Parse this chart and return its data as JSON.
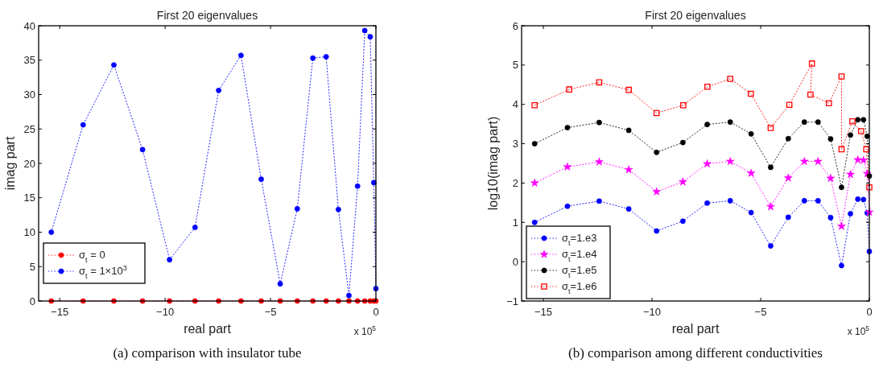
{
  "chart_data": [
    {
      "type": "line",
      "title": "First 20 eigenvalues",
      "xlabel": "real part",
      "ylabel": "imag part",
      "x": [
        -15.4,
        -13.89,
        -12.43,
        -11.07,
        -9.79,
        -8.58,
        -7.46,
        -6.4,
        -5.44,
        -4.54,
        -3.73,
        -2.99,
        -2.36,
        -1.78,
        -1.28,
        -0.87,
        -0.53,
        -0.27,
        -0.1,
        0
      ],
      "series": [
        {
          "name": "σ$_{t}$ = 0",
          "color": "#ff0000",
          "marker": "circle",
          "values": [
            0,
            0,
            0,
            0,
            0,
            0,
            0,
            0,
            0,
            0,
            0,
            0,
            0,
            0,
            0,
            0,
            0,
            0,
            0,
            0
          ]
        },
        {
          "name": "σ$_{t}$ = 1×10$^{3}$",
          "color": "#0000ff",
          "marker": "circle",
          "values": [
            10,
            25.6,
            34.3,
            22,
            6,
            10.7,
            30.6,
            35.7,
            17.7,
            2.5,
            13.4,
            35.3,
            35.5,
            13.3,
            0.8,
            16.7,
            39.3,
            38.4,
            17.2,
            1.8
          ]
        }
      ],
      "xlim": [
        -16,
        0
      ],
      "xticks": [
        -15,
        -10,
        -5,
        0
      ],
      "ylim": [
        0,
        40
      ],
      "yticks": [
        0,
        5,
        10,
        15,
        20,
        25,
        30,
        35,
        40
      ],
      "line_style": "dotted",
      "grid": false,
      "legend": "bottom left",
      "annotations": [
        "x 10$^{5}$",
        "(a) comparison with insulator tube"
      ]
    },
    {
      "type": "line",
      "title": "First 20 eigenvalues",
      "xlabel": "real part",
      "ylabel": "log10(imag part)",
      "x": [
        -15.4,
        -13.89,
        -12.43,
        -11.07,
        -9.79,
        -8.58,
        -7.46,
        -6.4,
        -5.44,
        -4.54,
        -3.73,
        -2.99,
        -2.36,
        -1.78,
        -1.28,
        -0.87,
        -0.53,
        -0.27,
        -0.1,
        0
      ],
      "series": [
        {
          "name": "σ$_{t}$=1.e3",
          "color": "#0000ff",
          "marker": "circle",
          "values": [
            1.0,
            1.41,
            1.54,
            1.34,
            0.78,
            1.03,
            1.49,
            1.55,
            1.25,
            0.4,
            1.13,
            1.55,
            1.55,
            1.12,
            -0.1,
            1.22,
            1.59,
            1.58,
            1.24,
            0.26
          ]
        },
        {
          "name": "σ$_{t}$=1.e4",
          "color": "#ff00ff",
          "marker": "star",
          "values": [
            2.0,
            2.41,
            2.54,
            2.34,
            1.78,
            2.03,
            2.49,
            2.55,
            2.25,
            1.4,
            2.13,
            2.55,
            2.55,
            2.12,
            0.9,
            2.22,
            2.59,
            2.58,
            2.24,
            1.26
          ]
        },
        {
          "name": "σ$_{t}$=1.e5",
          "color": "#000000",
          "marker": "circle",
          "values": [
            3.0,
            3.41,
            3.54,
            3.34,
            2.78,
            3.03,
            3.49,
            3.55,
            3.25,
            2.4,
            3.13,
            3.55,
            3.55,
            3.12,
            1.89,
            3.22,
            3.61,
            3.61,
            3.19,
            2.18
          ]
        },
        {
          "name": "σ$_{t}$=1.e6",
          "color": "#ff0000",
          "marker": "square",
          "x": [
            -15.4,
            -13.81,
            -12.43,
            -11.07,
            -9.79,
            -8.56,
            -7.45,
            -6.4,
            -5.45,
            -4.54,
            -3.68,
            -2.64,
            -2.71,
            -1.86,
            -1.28,
            -1.28,
            -0.78,
            -0.38,
            -0.14,
            0
          ],
          "values": [
            3.98,
            4.38,
            4.56,
            4.37,
            3.78,
            3.98,
            4.45,
            4.65,
            4.27,
            3.4,
            3.99,
            5.04,
            4.25,
            4.03,
            4.71,
            2.86,
            3.57,
            3.32,
            2.86,
            1.89
          ]
        }
      ],
      "xlim": [
        -16,
        0
      ],
      "xticks": [
        -15,
        -10,
        -5,
        0
      ],
      "ylim": [
        -1,
        6
      ],
      "yticks": [
        -1,
        0,
        1,
        2,
        3,
        4,
        5,
        6
      ],
      "line_style": "dotted",
      "grid": false,
      "legend": "bottom left",
      "annotations": [
        "x 10$^{5}$",
        "(b) comparison among different conductivities"
      ]
    }
  ]
}
